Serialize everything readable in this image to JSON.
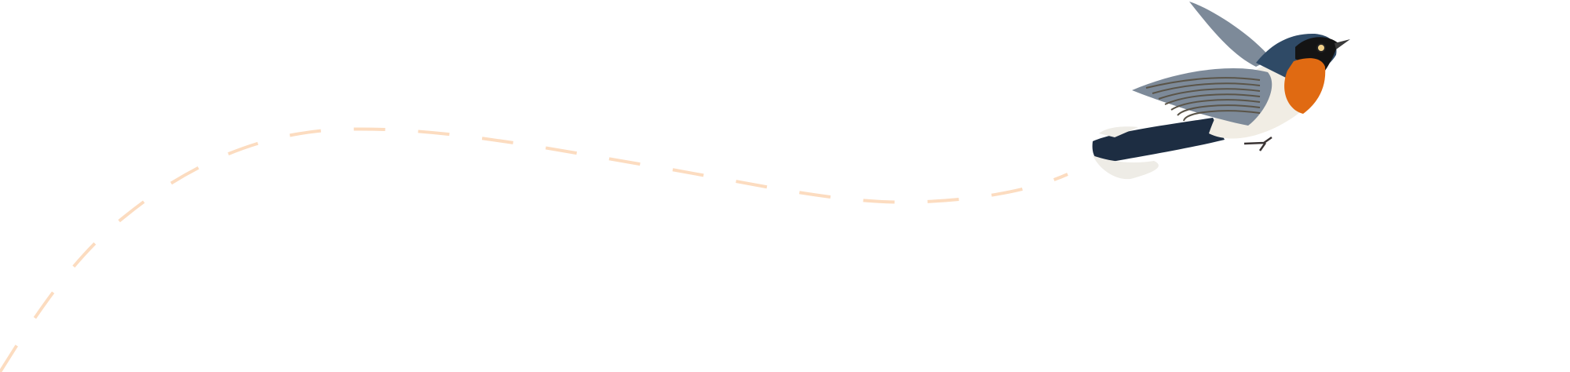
{
  "background": "#ffffff",
  "flight_path": {
    "color": "#fcdcc0",
    "style": "dashed"
  },
  "bird": {
    "name": "flying-bird-illustration",
    "colors": {
      "head": "#2f4a66",
      "mask": "#141414",
      "throat": "#e06a12",
      "belly": "#f1ede4",
      "wing": "#7d8a99",
      "wing_dark": "#5a5448",
      "tail": "#1d2d42",
      "tail_tip": "#eeece6"
    }
  }
}
